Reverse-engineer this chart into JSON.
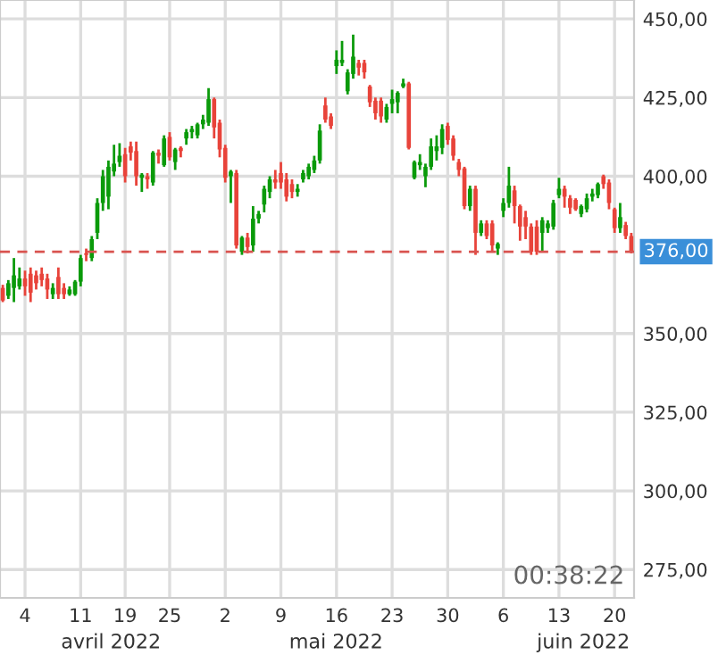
{
  "chart_data": {
    "type": "candlestick",
    "categories": [
      null,
      null,
      null,
      null,
      "4",
      null,
      null,
      null,
      null,
      null,
      null,
      null,
      null,
      null,
      "11",
      null,
      null,
      null,
      null,
      null,
      null,
      null,
      "19",
      null,
      null,
      null,
      null,
      null,
      null,
      null,
      "25",
      null,
      null,
      null,
      null,
      null,
      null,
      null,
      null,
      null,
      "2",
      null,
      null,
      null,
      null,
      null,
      null,
      null,
      null,
      null,
      "9",
      null,
      null,
      null,
      null,
      null,
      null,
      null,
      null,
      null,
      "16",
      null,
      null,
      null,
      null,
      null,
      null,
      null,
      null,
      null,
      "23",
      null,
      null,
      null,
      null,
      null,
      null,
      null,
      null,
      null,
      "30",
      null,
      null,
      null,
      null,
      null,
      null,
      null,
      null,
      null,
      "6",
      null,
      null,
      null,
      null,
      null,
      null,
      null,
      null,
      null,
      "13",
      null,
      null,
      null,
      null,
      null,
      null,
      null,
      null,
      null,
      "20",
      null,
      null,
      null
    ],
    "ohlc": [
      [
        364.5,
        365.5,
        360,
        360.5
      ],
      [
        362,
        367,
        361,
        366
      ],
      [
        364.5,
        374,
        360,
        368.5
      ],
      [
        365,
        371,
        364,
        367.5
      ],
      [
        367.5,
        370,
        362,
        365
      ],
      [
        369,
        371,
        360,
        363
      ],
      [
        368.5,
        370,
        364,
        366
      ],
      [
        369,
        371,
        365,
        367
      ],
      [
        367.5,
        369,
        361,
        364
      ],
      [
        362.5,
        366,
        361,
        364.5
      ],
      [
        368,
        371,
        361,
        362.5
      ],
      [
        364.5,
        366,
        361,
        362.5
      ],
      [
        362.5,
        365,
        362,
        364
      ],
      [
        362.5,
        367,
        362,
        366.5
      ],
      [
        366.5,
        375,
        365,
        374
      ],
      [
        375.5,
        377,
        373,
        375
      ],
      [
        374,
        381,
        373,
        380
      ],
      [
        382,
        393,
        380,
        391.5
      ],
      [
        391.5,
        402,
        389,
        400
      ],
      [
        393.5,
        405,
        389.5,
        403
      ],
      [
        401.5,
        410,
        400,
        404
      ],
      [
        404.5,
        410.5,
        403,
        406.5
      ],
      [
        407,
        409,
        398,
        400
      ],
      [
        409.5,
        411,
        405,
        407.5
      ],
      [
        408,
        411,
        397,
        400
      ],
      [
        399.5,
        401,
        395,
        400.5
      ],
      [
        400,
        401,
        396,
        399
      ],
      [
        398,
        408,
        397,
        407.5
      ],
      [
        407.5,
        408.5,
        404,
        406.5
      ],
      [
        403.5,
        413,
        403,
        412
      ],
      [
        412.5,
        414,
        405,
        406
      ],
      [
        404.5,
        409,
        402,
        408.5
      ],
      [
        409,
        409.5,
        406,
        408
      ],
      [
        412,
        415,
        410,
        414
      ],
      [
        414,
        416,
        412,
        415
      ],
      [
        413,
        417,
        412,
        416.5
      ],
      [
        416.5,
        419.5,
        415,
        418
      ],
      [
        417,
        428,
        416,
        424.5
      ],
      [
        424.5,
        425,
        412,
        415.5
      ],
      [
        417,
        418,
        406,
        408.5
      ],
      [
        409,
        410,
        398,
        399.5
      ],
      [
        400,
        402,
        391.5,
        401.5
      ],
      [
        401,
        402,
        377,
        378
      ],
      [
        376,
        381,
        375,
        380.5
      ],
      [
        380.5,
        382,
        375.5,
        377.5
      ],
      [
        378,
        390.5,
        376,
        386.5
      ],
      [
        386.5,
        389,
        385,
        388
      ],
      [
        391,
        397,
        388.5,
        396
      ],
      [
        395,
        400,
        393,
        399
      ],
      [
        399,
        402,
        396,
        398
      ],
      [
        401,
        404.5,
        396,
        398
      ],
      [
        399,
        401,
        392,
        393.5
      ],
      [
        397.5,
        399,
        393,
        395
      ],
      [
        395,
        397.5,
        393.5,
        396
      ],
      [
        399,
        402,
        398,
        401
      ],
      [
        400,
        404,
        399,
        403
      ],
      [
        402,
        406.5,
        401,
        405
      ],
      [
        405,
        416.5,
        404,
        414.5
      ],
      [
        422.5,
        425,
        417,
        418
      ],
      [
        419,
        420,
        415,
        416
      ],
      [
        435,
        440,
        432.5,
        437
      ],
      [
        436,
        443,
        435,
        437
      ],
      [
        427,
        434,
        426,
        433
      ],
      [
        432.5,
        445,
        431,
        438
      ],
      [
        436,
        437,
        432,
        434.5
      ],
      [
        436,
        437,
        431,
        433
      ],
      [
        428.5,
        429,
        422,
        423.5
      ],
      [
        424,
        425,
        418,
        420
      ],
      [
        424,
        425,
        417,
        419
      ],
      [
        418,
        423,
        417,
        422
      ],
      [
        423,
        427.5,
        420,
        424.5
      ],
      [
        423.5,
        427,
        420,
        426.5
      ],
      [
        428.5,
        431,
        428,
        429.5
      ],
      [
        429.5,
        430,
        408.5,
        409
      ],
      [
        399.5,
        405,
        399,
        404.5
      ],
      [
        403.5,
        407,
        402,
        404.5
      ],
      [
        400,
        404,
        396.5,
        403
      ],
      [
        403,
        412,
        402,
        409.5
      ],
      [
        408,
        413,
        405,
        409.5
      ],
      [
        409,
        416.5,
        407,
        415
      ],
      [
        416,
        417,
        410,
        411.5
      ],
      [
        412,
        413,
        405,
        406.5
      ],
      [
        404.5,
        405.5,
        400,
        402
      ],
      [
        402.5,
        403,
        389.5,
        390.5
      ],
      [
        390.5,
        397,
        389,
        396
      ],
      [
        396,
        397,
        375,
        382
      ],
      [
        382,
        386,
        381,
        385
      ],
      [
        385,
        386,
        380,
        381
      ],
      [
        385,
        386,
        376,
        378
      ],
      [
        377,
        379,
        375,
        378.5
      ],
      [
        389,
        393,
        387,
        391.5
      ],
      [
        391.5,
        403,
        390,
        397
      ],
      [
        395.5,
        397,
        385,
        390.5
      ],
      [
        390.5,
        391,
        379.5,
        384
      ],
      [
        387,
        389,
        380,
        384
      ],
      [
        384,
        385,
        375,
        376
      ],
      [
        384,
        386,
        375,
        376
      ],
      [
        382,
        387,
        376,
        386
      ],
      [
        383.5,
        386,
        382,
        385
      ],
      [
        384,
        392.5,
        383,
        391.5
      ],
      [
        394,
        399.5,
        393,
        396
      ],
      [
        396,
        397,
        390,
        393.5
      ],
      [
        393,
        394,
        388,
        390
      ],
      [
        392.5,
        393,
        389,
        389.5
      ],
      [
        388,
        391,
        387,
        390.5
      ],
      [
        389.5,
        394.5,
        388.5,
        393
      ],
      [
        393.5,
        396,
        392,
        394.5
      ],
      [
        394,
        398,
        393,
        397.5
      ],
      [
        400,
        400.5,
        396,
        397.5
      ],
      [
        398,
        399,
        389.5,
        391.5
      ],
      [
        389.5,
        390,
        382,
        383.5
      ],
      [
        383.5,
        391.5,
        382,
        387
      ],
      [
        384.5,
        385.5,
        380,
        381
      ],
      [
        381,
        382,
        375.5,
        376
      ]
    ],
    "ylim": [
      266,
      456
    ],
    "yticks": [
      {
        "value": 275,
        "label": "275,00"
      },
      {
        "value": 300,
        "label": "300,00"
      },
      {
        "value": 325,
        "label": "325,00"
      },
      {
        "value": 350,
        "label": "350,00"
      },
      {
        "value": 400,
        "label": "400,00"
      },
      {
        "value": 425,
        "label": "425,00"
      },
      {
        "value": 450,
        "label": "450,00"
      }
    ],
    "ref_lines": [
      {
        "axis": "y",
        "value": 376,
        "label": "376,00",
        "color": "#d9534f",
        "line_style": "dashed"
      }
    ],
    "grid": true,
    "annotations": [
      "avril 2022",
      "mai 2022",
      "juin 2022",
      "00:38:22"
    ]
  }
}
